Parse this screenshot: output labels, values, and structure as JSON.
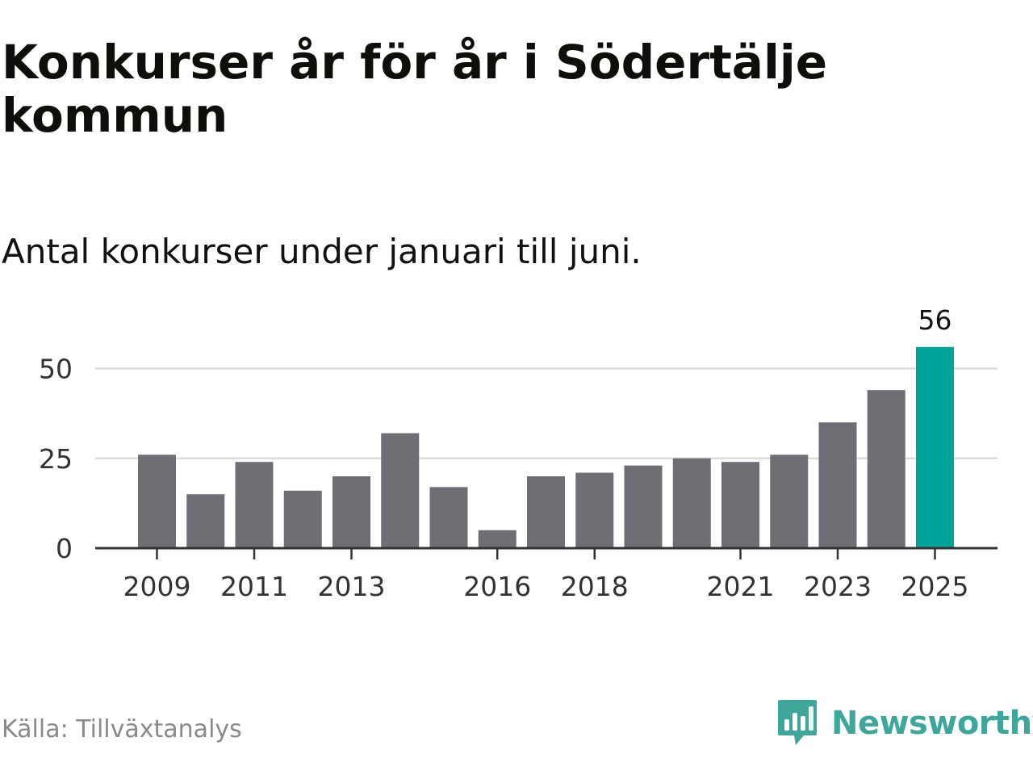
{
  "title": "Konkurser år för år i Södertälje kommun",
  "subtitle": "Antal konkurser under januari till juni.",
  "source": "Källa: Tillväxtanalys",
  "brand": {
    "name": "Newsworthy",
    "icon": "newsworthy-logo-icon",
    "color": "#3ea69a"
  },
  "chart_data": {
    "type": "bar",
    "categories": [
      "2009",
      "2010",
      "2011",
      "2012",
      "2013",
      "2014",
      "2015",
      "2016",
      "2017",
      "2018",
      "2019",
      "2020",
      "2021",
      "2022",
      "2023",
      "2024",
      "2025"
    ],
    "values": [
      26,
      15,
      24,
      16,
      20,
      32,
      17,
      5,
      20,
      21,
      23,
      25,
      24,
      26,
      35,
      44,
      56
    ],
    "x_tick_labels": [
      "2009",
      "2011",
      "2013",
      "2016",
      "2018",
      "2021",
      "2023",
      "2025"
    ],
    "y_ticks": [
      0,
      25,
      50
    ],
    "ylim": [
      0,
      56
    ],
    "highlight": {
      "category": "2025",
      "label": "56"
    },
    "grid": true,
    "legend": "none",
    "colors": {
      "bar": "#6f6e74",
      "highlight": "#00a39a",
      "grid": "#dddddd",
      "axis": "#333333"
    }
  }
}
